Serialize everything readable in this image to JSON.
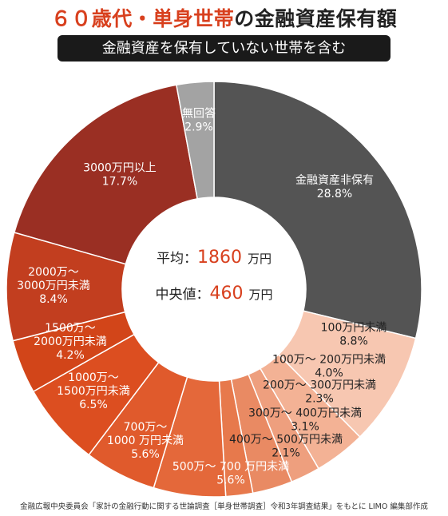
{
  "title": {
    "accent": "６０歳代・単身世帯",
    "rest": "の金融資産保有額"
  },
  "subtitle": "金融資産を保有していない世帯を含む",
  "center": {
    "average_label": "平均：",
    "average_value": "1860",
    "median_label": "中央値：",
    "median_value": "460",
    "unit": "万円",
    "value_color": "#d8401e"
  },
  "source": "金融広報中央委員会「家計の金融行動に関する世論調査［単身世帯調査］令和3年調査結果」をもとに LIMO 編集部作成",
  "chart_data": {
    "type": "pie",
    "donut": true,
    "start": "top, clockwise",
    "unit": "%",
    "slices": [
      {
        "label": [
          "金融資産非保有"
        ],
        "value": 28.8,
        "display": "28.8%",
        "color": "#545454",
        "text_color": "#ffffff"
      },
      {
        "label": [
          "100万円未満"
        ],
        "value": 8.8,
        "display": "8.8%",
        "color": "#f7c7b1",
        "text_color": "#222222"
      },
      {
        "label": [
          "100万～ 200万円未満"
        ],
        "value": 4.0,
        "display": "4.0%",
        "color": "#f3b295",
        "text_color": "#222222"
      },
      {
        "label": [
          "200万～ 300万円未満"
        ],
        "value": 2.3,
        "display": "2.3%",
        "color": "#ee9f7e",
        "text_color": "#222222"
      },
      {
        "label": [
          "300万～ 400万円未満"
        ],
        "value": 3.1,
        "display": "3.1%",
        "color": "#e98a63",
        "text_color": "#222222"
      },
      {
        "label": [
          "400万～ 500万円未満"
        ],
        "value": 2.1,
        "display": "2.1%",
        "color": "#e7794c",
        "text_color": "#222222"
      },
      {
        "label": [
          "500万～ 700 万円未満"
        ],
        "value": 5.6,
        "display": "5.6%",
        "color": "#e4683a",
        "text_color": "#ffffff"
      },
      {
        "label": [
          "700万～",
          "1000 万円未満"
        ],
        "value": 5.6,
        "display": "5.6%",
        "color": "#e05a2c",
        "text_color": "#ffffff"
      },
      {
        "label": [
          "1000万～",
          "1500万円未満"
        ],
        "value": 6.5,
        "display": "6.5%",
        "color": "#dc4e20",
        "text_color": "#ffffff"
      },
      {
        "label": [
          "1500万～",
          "2000万円未満"
        ],
        "value": 4.2,
        "display": "4.2%",
        "color": "#d24519",
        "text_color": "#ffffff"
      },
      {
        "label": [
          "2000万～",
          "3000万円未満"
        ],
        "value": 8.4,
        "display": "8.4%",
        "color": "#c23e1f",
        "text_color": "#ffffff"
      },
      {
        "label": [
          "3000万円以上"
        ],
        "value": 17.7,
        "display": "17.7%",
        "color": "#9a2f23",
        "text_color": "#ffffff"
      },
      {
        "label": [
          "無回答"
        ],
        "value": 2.9,
        "display": "2.9%",
        "color": "#a3a3a3",
        "text_color": "#ffffff"
      }
    ]
  }
}
